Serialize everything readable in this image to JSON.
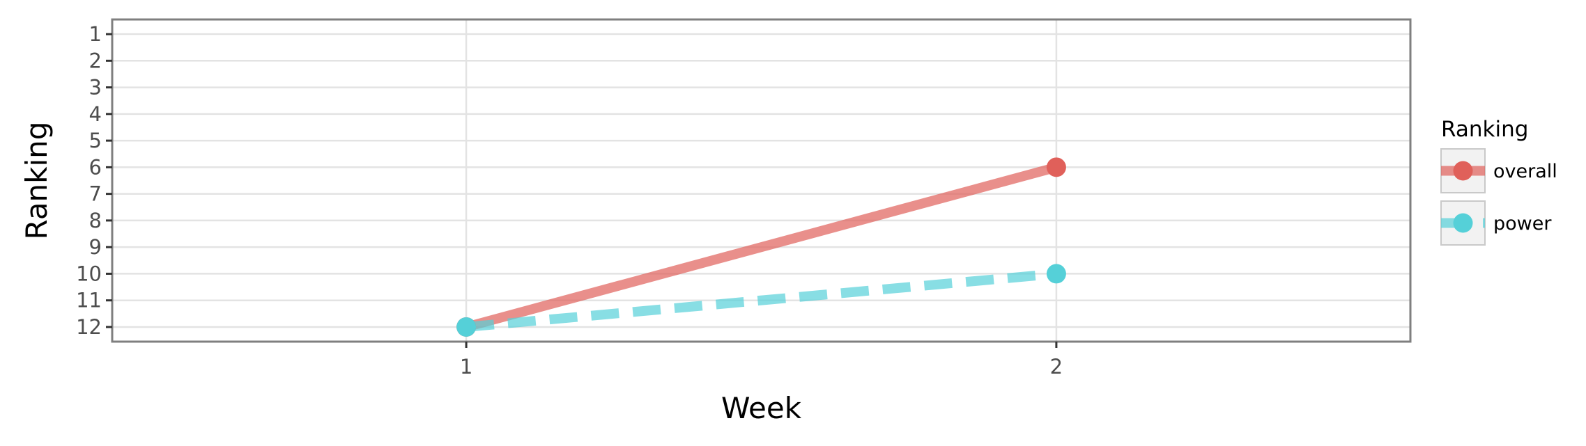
{
  "chart_data": {
    "type": "line",
    "title": "",
    "xlabel": "Week",
    "ylabel": "Ranking",
    "x": [
      1,
      2
    ],
    "x_ticks": [
      "1",
      "2"
    ],
    "xlim": [
      0.4,
      2.6
    ],
    "y_ticks": [
      "1",
      "2",
      "3",
      "4",
      "5",
      "6",
      "7",
      "8",
      "9",
      "10",
      "11",
      "12"
    ],
    "ylim": [
      12.55,
      0.45
    ],
    "y_reversed": true,
    "grid": true,
    "legend": {
      "title": "Ranking",
      "position": "right"
    },
    "series": [
      {
        "name": "overall",
        "values": [
          12,
          6
        ],
        "color": "#E0605A",
        "line_style": "solid"
      },
      {
        "name": "power",
        "values": [
          12,
          10
        ],
        "color": "#55D0D8",
        "line_style": "dashed"
      }
    ]
  }
}
